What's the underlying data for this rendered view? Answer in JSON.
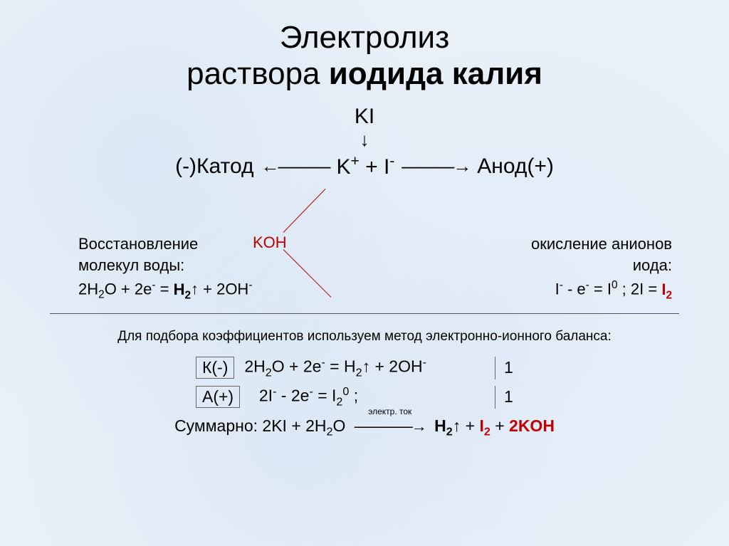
{
  "colors": {
    "background": "#e8f0f8",
    "text": "#000000",
    "accent_red": "#c00000",
    "rule": "#555555",
    "box_border": "#666666"
  },
  "typography": {
    "title_fontsize": 44,
    "body_fontsize": 22,
    "equation_fontsize": 23,
    "note_fontsize": 19,
    "font_family": "Arial"
  },
  "title": {
    "line1": "Электролиз",
    "line2_plain": "раствора ",
    "line2_bold": "иодида калия"
  },
  "formula": "KI",
  "dissociation": {
    "cathode_label": "(-)Катод",
    "ions": "K⁺ + I⁻",
    "anode_label": "Анод(+)"
  },
  "cathode": {
    "line1": "Восстановление",
    "line2": "молекул воды:",
    "equation_prefix": "2H",
    "equation_rest": "O + 2e⁻ = ",
    "h2": "H",
    "arrowup": "↑",
    "plus2oh": " + 2OH⁻"
  },
  "koh": "KOH",
  "anode": {
    "line1": "окисление анионов",
    "line2": "иода:",
    "equation": "I⁻ - e⁻ = I⁰ ; 2I = ",
    "i2": "I₂"
  },
  "balance": {
    "note": "Для подбора коэффициентов используем метод электронно-ионного баланса:",
    "k_label": "К(-)",
    "k_equation": "2H₂O + 2e⁻ = H₂↑ + 2OH⁻",
    "k_coef": "1",
    "a_label": "А(+)",
    "a_equation": "2I⁻ - 2e⁻ = I₂⁰ ;",
    "a_coef": "1",
    "summary_label": "Суммарно: ",
    "summary_left": "2KI + 2H₂O",
    "arrow_label": "электр. ток",
    "summary_h2": "H₂",
    "summary_arrowup": "↑",
    "summary_plus": " + ",
    "summary_i2": "I₂",
    "summary_plus2": " + ",
    "summary_koh": "2KOH"
  }
}
